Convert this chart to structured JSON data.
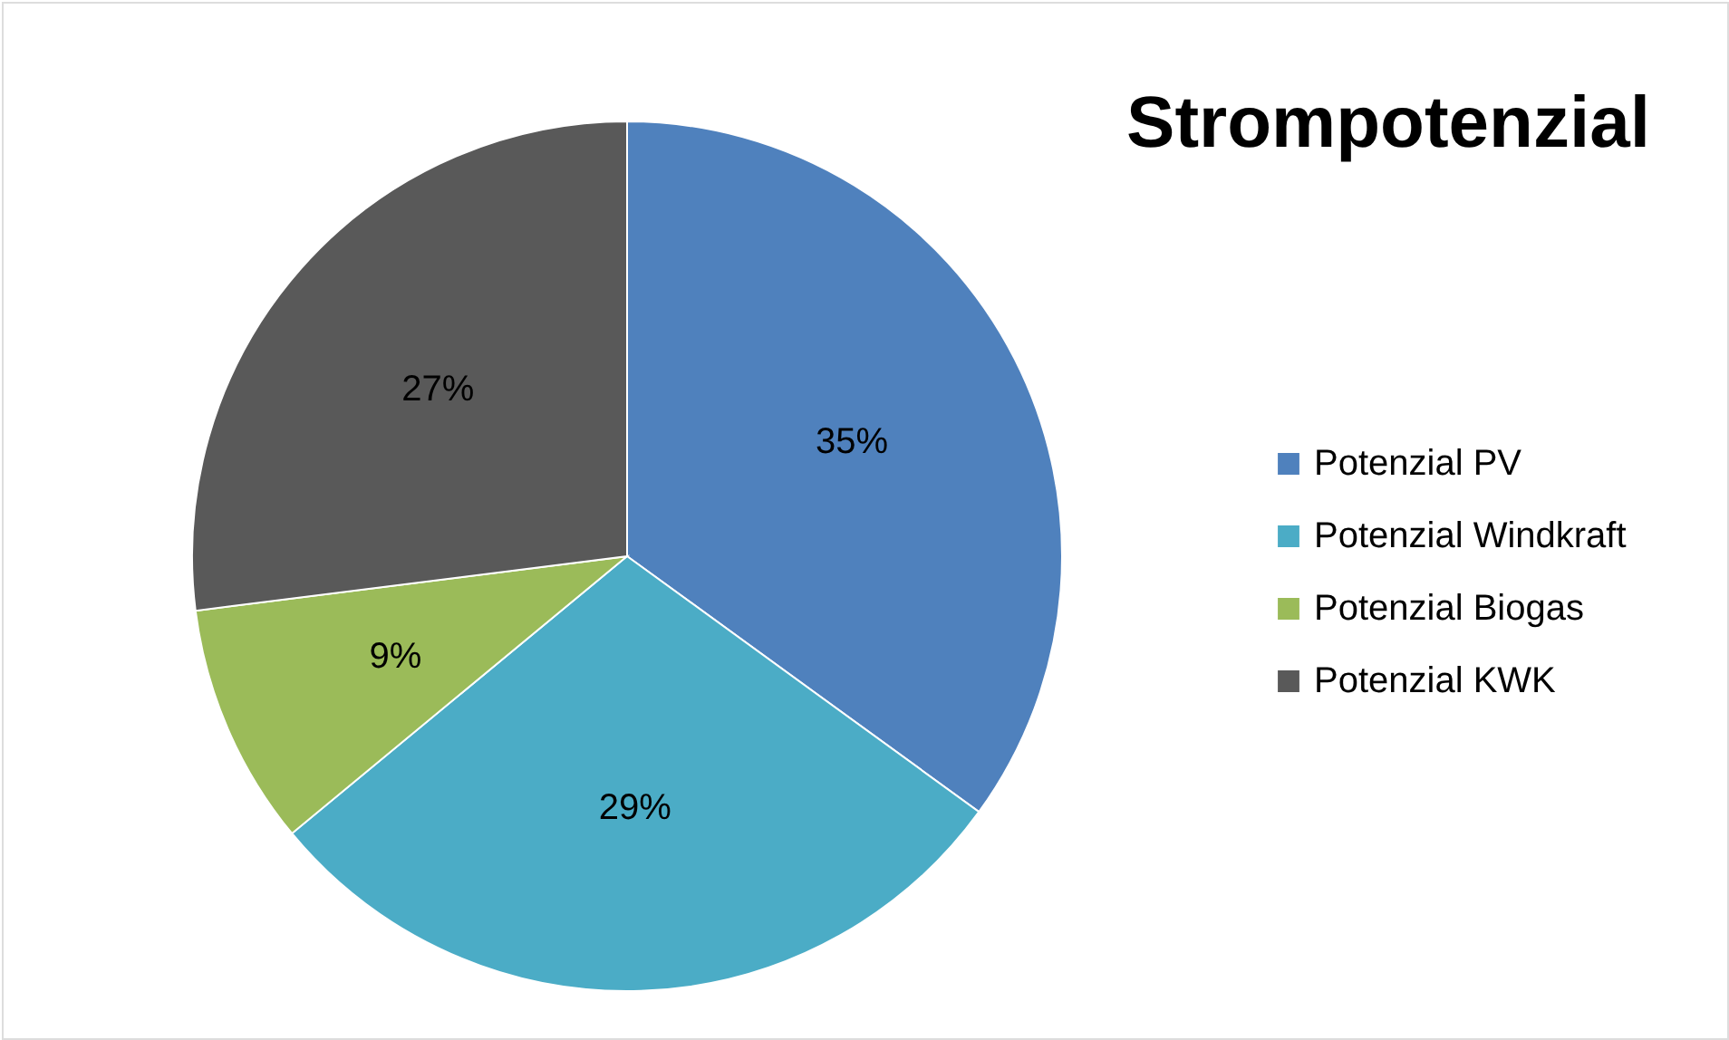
{
  "chart_data": {
    "type": "pie",
    "title": "Strompotenzial",
    "categories": [
      "Potenzial PV",
      "Potenzial Windkraft",
      "Potenzial Biogas",
      "Potenzial KWK"
    ],
    "values": [
      35,
      29,
      9,
      27
    ],
    "value_labels": [
      "35%",
      "29%",
      "9%",
      "27%"
    ],
    "colors": [
      "#4f81bd",
      "#4bacc6",
      "#9bbb59",
      "#595959"
    ],
    "legend": "right"
  }
}
